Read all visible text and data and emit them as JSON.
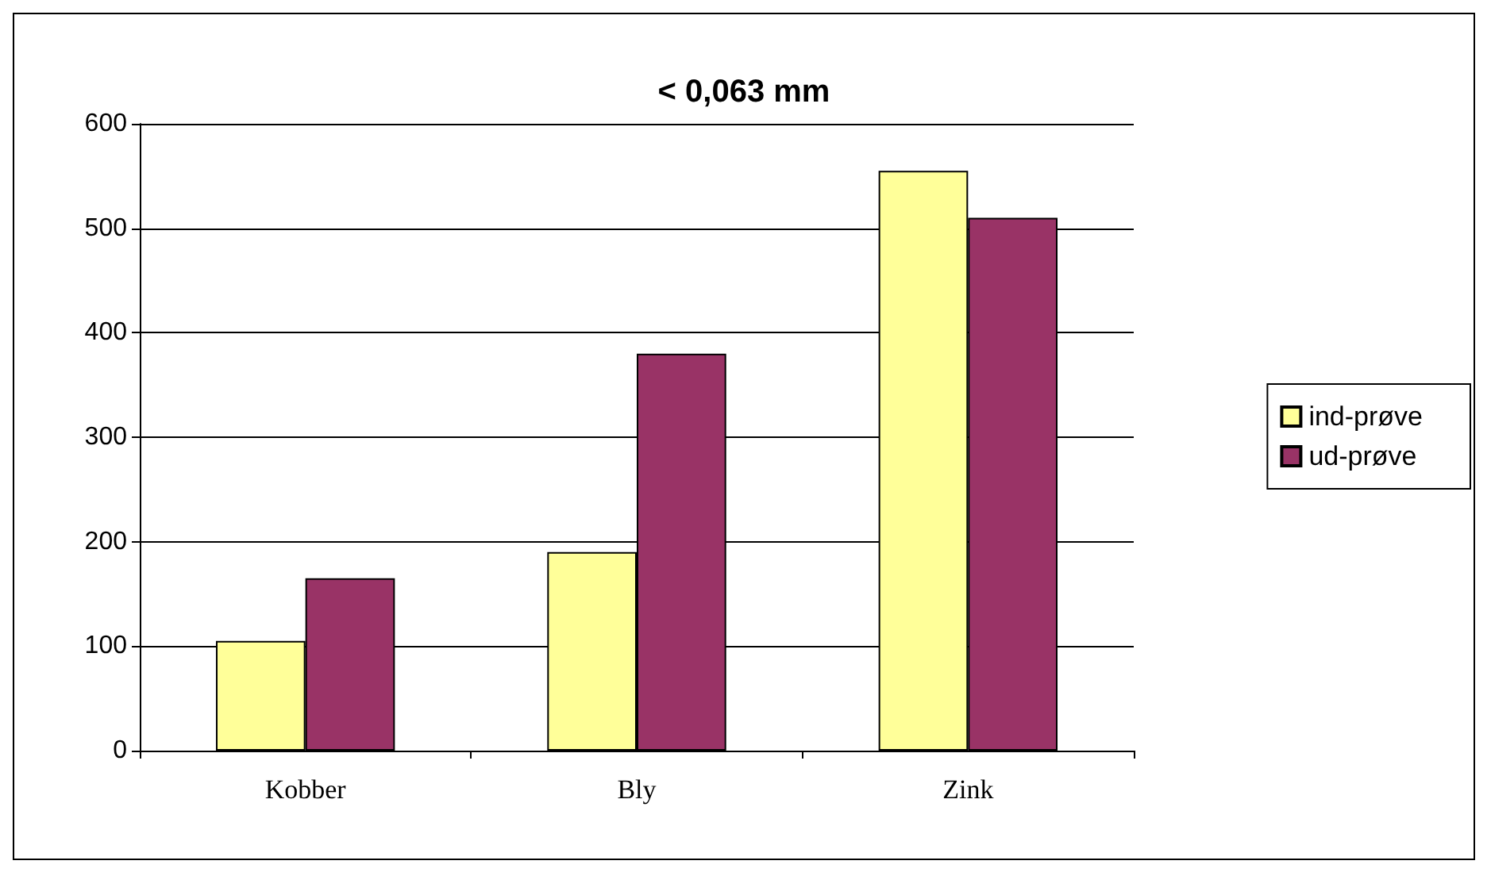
{
  "chart_data": {
    "type": "bar",
    "title": "< 0,063 mm",
    "categories": [
      "Kobber",
      "Bly",
      "Zink"
    ],
    "series": [
      {
        "name": "ind-prøve",
        "color": "#ffff99",
        "values": [
          105,
          190,
          555
        ]
      },
      {
        "name": "ud-prøve",
        "color": "#993366",
        "values": [
          165,
          380,
          510
        ]
      }
    ],
    "ylim": [
      0,
      600
    ],
    "yticks": [
      0,
      100,
      200,
      300,
      400,
      500,
      600
    ],
    "grid": "y",
    "legend": "right"
  }
}
